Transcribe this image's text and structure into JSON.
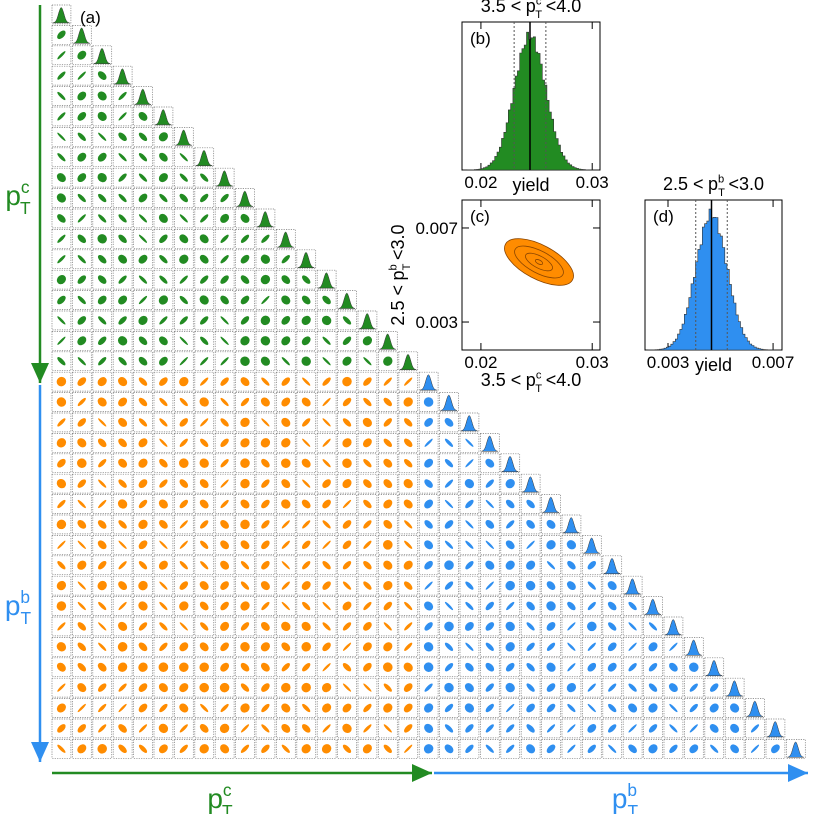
{
  "panel_labels": [
    "(a)",
    "(b)",
    "(c)",
    "(d)"
  ],
  "axis_c": {
    "main": "p",
    "sub": "T",
    "sup": "c"
  },
  "axis_b": {
    "main": "p",
    "sub": "T",
    "sup": "b"
  },
  "panel_b": {
    "type": "histogram",
    "title": {
      "left": "3.5 <",
      "main": "p",
      "sup": "c",
      "sub": "T",
      "right": "<4.0"
    },
    "xlabel": "yield",
    "color": "#228b22",
    "xlim": [
      0.0183,
      0.0307
    ],
    "xticks": [
      0.02,
      0.03
    ]
  },
  "panel_c": {
    "type": "contour",
    "xlabel": {
      "left": "3.5 <",
      "main": "p",
      "sup": "c",
      "sub": "T",
      "right": "<4.0"
    },
    "ylabel": {
      "left": "2.5 <",
      "main": "p",
      "sup": "b",
      "sub": "T",
      "right": "<3.0"
    },
    "color": "#ff8c00",
    "xlim": [
      0.0183,
      0.0307
    ],
    "xticks": [
      0.02,
      0.03
    ],
    "ylim": [
      0.00181,
      0.00819
    ],
    "yticks": [
      0.003,
      0.007
    ]
  },
  "panel_d": {
    "type": "histogram",
    "title": {
      "left": "2.5 <",
      "main": "p",
      "sup": "b",
      "sub": "T",
      "right": "<3.0"
    },
    "xlabel": "yield",
    "color": "#2f8ff0",
    "xlim": [
      0.002124,
      0.00734
    ],
    "xticks": [
      0.003,
      0.007
    ]
  }
}
